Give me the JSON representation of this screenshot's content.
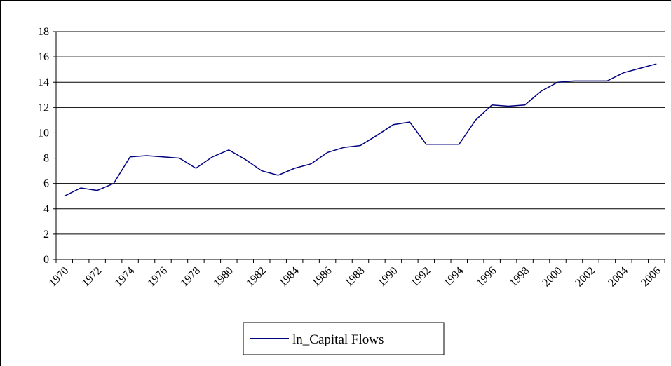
{
  "chart_data": {
    "type": "line",
    "categories": [
      "1970",
      null,
      "1972",
      null,
      "1974",
      null,
      "1976",
      null,
      "1978",
      null,
      "1980",
      null,
      "1982",
      null,
      "1984",
      null,
      "1986",
      null,
      "1988",
      null,
      "1990",
      null,
      "1992",
      null,
      "1994",
      null,
      "1996",
      null,
      "1998",
      null,
      "2000",
      null,
      "2002",
      null,
      "2004",
      null,
      "2006"
    ],
    "series": [
      {
        "name": "ln_Capital Flows",
        "color": "#000080",
        "values": [
          5.0,
          5.65,
          5.45,
          6.0,
          8.1,
          8.2,
          8.1,
          8.0,
          7.2,
          8.1,
          8.65,
          7.9,
          7.0,
          6.65,
          7.2,
          7.55,
          8.45,
          8.85,
          9.0,
          9.8,
          10.65,
          10.85,
          9.1,
          9.1,
          9.1,
          11.0,
          12.2,
          12.1,
          12.2,
          13.3,
          14.0,
          14.1,
          14.1,
          14.1,
          14.75,
          15.1,
          15.45
        ]
      }
    ],
    "ylim": [
      0,
      18
    ],
    "yticks": [
      0,
      2,
      4,
      6,
      8,
      10,
      12,
      14,
      16,
      18
    ],
    "grid": true,
    "legend": "bottom"
  }
}
